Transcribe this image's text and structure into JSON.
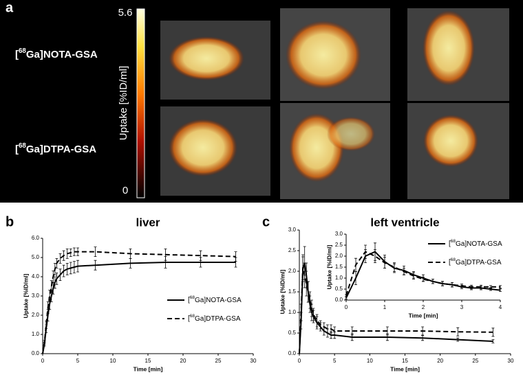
{
  "panel_a": {
    "label": "a",
    "rows": [
      "[68Ga]NOTA-GSA",
      "[68Ga]DTPA-GSA"
    ],
    "colorbar": {
      "label": "Uptake [%ID/ml]",
      "lim": [
        0,
        5.6
      ],
      "ticks": [
        0,
        5.6
      ]
    }
  },
  "chart_data": [
    {
      "type": "line",
      "panel_label": "b",
      "title": "liver",
      "xlabel": "Time [min]",
      "ylabel": "Uptake [%ID/ml]",
      "xlim": [
        0,
        30
      ],
      "xticks": [
        0,
        5,
        10,
        15,
        20,
        25,
        30
      ],
      "ylim": [
        0,
        6
      ],
      "yticks": [
        {
          "value": 0,
          "label": "0.0"
        },
        {
          "value": 1,
          "label": "1.0"
        },
        {
          "value": 2,
          "label": "2.0"
        },
        {
          "value": 3,
          "label": "3.0"
        },
        {
          "value": 4,
          "label": "4.0"
        },
        {
          "value": 5,
          "label": "5.0"
        },
        {
          "value": 6,
          "label": "6.0"
        }
      ],
      "legend": "lower right",
      "series": [
        {
          "name": "[68Ga]NOTA-GSA",
          "color": "#000000",
          "dash": false,
          "x": [
            0,
            0.25,
            0.5,
            0.75,
            1,
            1.25,
            1.5,
            1.75,
            2,
            2.5,
            3,
            3.5,
            4,
            4.5,
            5,
            7.5,
            12.5,
            17.5,
            22.5,
            27.5
          ],
          "values": [
            0,
            0.5,
            1.3,
            2.0,
            2.6,
            3.0,
            3.4,
            3.7,
            3.9,
            4.1,
            4.3,
            4.4,
            4.45,
            4.5,
            4.55,
            4.6,
            4.7,
            4.75,
            4.75,
            4.75
          ],
          "errors": [
            0,
            0.1,
            0.2,
            0.3,
            0.3,
            0.3,
            0.3,
            0.3,
            0.3,
            0.3,
            0.3,
            0.3,
            0.3,
            0.3,
            0.3,
            0.25,
            0.25,
            0.3,
            0.25,
            0.25
          ]
        },
        {
          "name": "[68Ga]DTPA-GSA",
          "color": "#000000",
          "dash": true,
          "x": [
            0,
            0.25,
            0.5,
            0.75,
            1,
            1.25,
            1.5,
            1.75,
            2,
            2.5,
            3,
            3.5,
            4,
            4.5,
            5,
            7.5,
            12.5,
            17.5,
            22.5,
            27.5
          ],
          "values": [
            0,
            0.6,
            1.5,
            2.4,
            3.0,
            3.5,
            4.0,
            4.4,
            4.7,
            4.95,
            5.1,
            5.2,
            5.25,
            5.3,
            5.3,
            5.3,
            5.2,
            5.15,
            5.1,
            5.05
          ],
          "errors": [
            0,
            0.1,
            0.2,
            0.3,
            0.3,
            0.3,
            0.3,
            0.3,
            0.25,
            0.25,
            0.25,
            0.25,
            0.2,
            0.2,
            0.2,
            0.25,
            0.25,
            0.3,
            0.25,
            0.25
          ]
        }
      ]
    },
    {
      "type": "line",
      "panel_label": "c",
      "title": "left ventricle",
      "xlabel": "Time [min]",
      "ylabel": "Uptake [%ID/ml]",
      "xlim": [
        0,
        30
      ],
      "xticks": [
        0,
        5,
        10,
        15,
        20,
        25,
        30
      ],
      "ylim": [
        0,
        3
      ],
      "yticks": [
        {
          "value": 0,
          "label": "0.0"
        },
        {
          "value": 0.5,
          "label": "0.5"
        },
        {
          "value": 1,
          "label": "1.0"
        },
        {
          "value": 1.5,
          "label": "1.5"
        },
        {
          "value": 2,
          "label": "2.0"
        },
        {
          "value": 2.5,
          "label": "2.5"
        },
        {
          "value": 3,
          "label": "3.0"
        }
      ],
      "series": [
        {
          "color": "#000000",
          "dash": false,
          "x": [
            0,
            0.25,
            0.5,
            0.75,
            1,
            1.25,
            1.5,
            1.75,
            2,
            2.5,
            3,
            3.5,
            4,
            4.5,
            5,
            7.5,
            12.5,
            17.5,
            22.5,
            27.5
          ],
          "values": [
            0,
            0.8,
            2.05,
            2.2,
            1.9,
            1.5,
            1.2,
            1.0,
            0.9,
            0.75,
            0.65,
            0.55,
            0.5,
            0.45,
            0.45,
            0.4,
            0.4,
            0.38,
            0.34,
            0.3
          ],
          "errors": [
            0,
            0.2,
            0.3,
            0.4,
            0.3,
            0.25,
            0.2,
            0.2,
            0.15,
            0.15,
            0.1,
            0.1,
            0.1,
            0.08,
            0.08,
            0.08,
            0.08,
            0.06,
            0.04,
            0.04
          ]
        },
        {
          "color": "#000000",
          "dash": true,
          "x": [
            0,
            0.25,
            0.5,
            0.75,
            1,
            1.25,
            1.5,
            1.75,
            2,
            2.5,
            3,
            3.5,
            4,
            4.5,
            5,
            7.5,
            12.5,
            17.5,
            22.5,
            27.5
          ],
          "values": [
            0,
            1.0,
            2.1,
            1.9,
            1.7,
            1.5,
            1.3,
            1.1,
            0.95,
            0.8,
            0.7,
            0.65,
            0.6,
            0.6,
            0.55,
            0.55,
            0.55,
            0.55,
            0.53,
            0.52
          ],
          "errors": [
            0,
            0.2,
            0.3,
            0.3,
            0.3,
            0.25,
            0.2,
            0.2,
            0.15,
            0.15,
            0.1,
            0.1,
            0.1,
            0.1,
            0.1,
            0.1,
            0.1,
            0.1,
            0.1,
            0.1
          ]
        }
      ]
    },
    {
      "type": "line",
      "inset_of": 1,
      "xlabel": "Time [min]",
      "ylabel": "Uptake [%ID/ml]",
      "xlim": [
        0,
        4
      ],
      "xticks": [
        0,
        1,
        2,
        3,
        4
      ],
      "ylim": [
        0,
        3
      ],
      "yticks": [
        {
          "value": 0,
          "label": "0.0"
        },
        {
          "value": 0.5,
          "label": "0.5"
        },
        {
          "value": 1,
          "label": "1.0"
        },
        {
          "value": 1.5,
          "label": "1.5"
        },
        {
          "value": 2,
          "label": "2.0"
        },
        {
          "value": 2.5,
          "label": "2.5"
        },
        {
          "value": 3,
          "label": "3.0"
        }
      ],
      "legend": "upper right",
      "series": [
        {
          "name": "[68Ga]NOTA-GSA",
          "color": "#000000",
          "dash": false,
          "x": [
            0,
            0.25,
            0.5,
            0.75,
            1,
            1.25,
            1.5,
            1.75,
            2,
            2.25,
            2.5,
            2.75,
            3,
            3.25,
            3.5,
            3.75,
            4
          ],
          "values": [
            0.1,
            1.0,
            2.0,
            2.2,
            1.75,
            1.45,
            1.35,
            1.15,
            1.0,
            0.85,
            0.75,
            0.7,
            0.6,
            0.55,
            0.55,
            0.5,
            0.45
          ],
          "errors": [
            0.05,
            0.3,
            0.3,
            0.4,
            0.3,
            0.2,
            0.2,
            0.15,
            0.15,
            0.1,
            0.1,
            0.1,
            0.08,
            0.08,
            0.08,
            0.06,
            0.06
          ]
        },
        {
          "name": "[68Ga]DTPA-GSA",
          "color": "#000000",
          "dash": true,
          "x": [
            0,
            0.25,
            0.5,
            0.75,
            1,
            1.25,
            1.5,
            1.75,
            2,
            2.25,
            2.5,
            2.75,
            3,
            3.25,
            3.5,
            3.75,
            4
          ],
          "values": [
            0.2,
            1.6,
            2.2,
            2.0,
            1.7,
            1.5,
            1.3,
            1.1,
            0.95,
            0.85,
            0.75,
            0.7,
            0.65,
            0.6,
            0.6,
            0.6,
            0.6
          ],
          "errors": [
            0.05,
            0.3,
            0.3,
            0.3,
            0.25,
            0.2,
            0.15,
            0.15,
            0.1,
            0.1,
            0.1,
            0.1,
            0.08,
            0.08,
            0.08,
            0.06,
            0.06
          ]
        }
      ]
    }
  ]
}
